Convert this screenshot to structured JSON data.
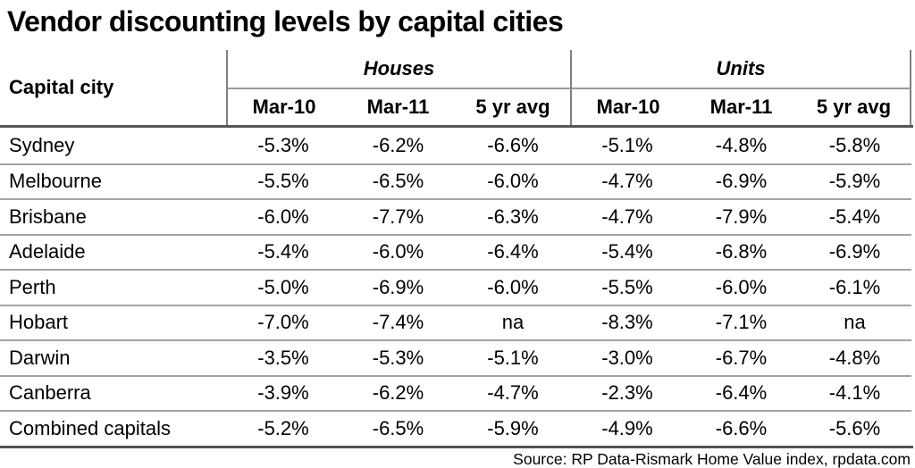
{
  "title": "Vendor discounting levels by capital cities",
  "table": {
    "capital_city_header": "Capital city",
    "groups": [
      {
        "label": "Houses",
        "columns": [
          "Mar-10",
          "Mar-11",
          "5 yr avg"
        ]
      },
      {
        "label": "Units",
        "columns": [
          "Mar-10",
          "Mar-11",
          "5 yr avg"
        ]
      }
    ],
    "rows": [
      {
        "city": "Sydney",
        "values": [
          "-5.3%",
          "-6.2%",
          "-6.6%",
          "-5.1%",
          "-4.8%",
          "-5.8%"
        ]
      },
      {
        "city": "Melbourne",
        "values": [
          "-5.5%",
          "-6.5%",
          "-6.0%",
          "-4.7%",
          "-6.9%",
          "-5.9%"
        ]
      },
      {
        "city": "Brisbane",
        "values": [
          "-6.0%",
          "-7.7%",
          "-6.3%",
          "-4.7%",
          "-7.9%",
          "-5.4%"
        ]
      },
      {
        "city": "Adelaide",
        "values": [
          "-5.4%",
          "-6.0%",
          "-6.4%",
          "-5.4%",
          "-6.8%",
          "-6.9%"
        ]
      },
      {
        "city": "Perth",
        "values": [
          "-5.0%",
          "-6.9%",
          "-6.0%",
          "-5.5%",
          "-6.0%",
          "-6.1%"
        ]
      },
      {
        "city": "Hobart",
        "values": [
          "-7.0%",
          "-7.4%",
          "na",
          "-8.3%",
          "-7.1%",
          "na"
        ]
      },
      {
        "city": "Darwin",
        "values": [
          "-3.5%",
          "-5.3%",
          "-5.1%",
          "-3.0%",
          "-6.7%",
          "-4.8%"
        ]
      },
      {
        "city": "Canberra",
        "values": [
          "-3.9%",
          "-6.2%",
          "-4.7%",
          "-2.3%",
          "-6.4%",
          "-4.1%"
        ]
      },
      {
        "city": "Combined capitals",
        "values": [
          "-5.2%",
          "-6.5%",
          "-5.9%",
          "-4.9%",
          "-6.6%",
          "-5.6%"
        ]
      }
    ]
  },
  "source": "Source: RP Data-Rismark Home Value index, rpdata.com",
  "colors": {
    "background": "#ffffff",
    "text": "#000000",
    "thin_line": "#a3a3a3",
    "thick_line": "#555555",
    "vertical_line": "#808080"
  }
}
